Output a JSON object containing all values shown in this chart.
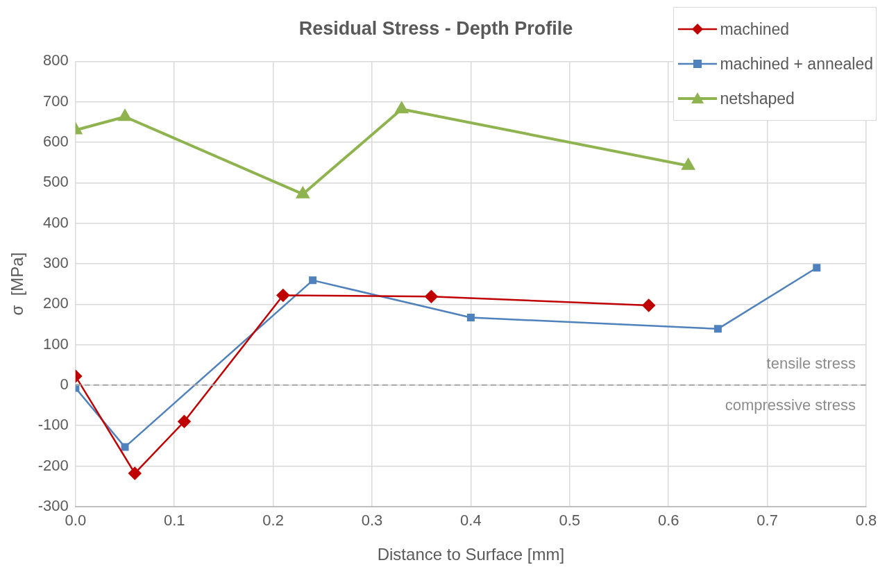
{
  "chart_data": {
    "type": "line",
    "title": "Residual Stress - Depth Profile",
    "xlabel": "Distance to Surface [mm]",
    "ylabel": "σ  [MPa]",
    "xlim": [
      0,
      0.8
    ],
    "xticks": [
      {
        "value": 0,
        "label": "0.0"
      },
      0.1,
      0.2,
      0.3,
      0.4,
      0.5,
      0.6,
      0.7,
      0.8
    ],
    "ylim": [
      -300,
      800
    ],
    "yticks": [
      -300,
      -200,
      -100,
      0,
      100,
      200,
      300,
      400,
      500,
      600,
      700,
      800
    ],
    "grid": true,
    "legend": "top right",
    "line_style": "solid",
    "ref_lines": [
      {
        "axis": "y",
        "value": 0,
        "color": "#a6a6a6",
        "line_style": "dashed"
      }
    ],
    "annotations": [
      "tensile stress",
      "compressive stress"
    ],
    "series": [
      {
        "name": "machined",
        "color": "#c00000",
        "marker": "diamond",
        "x": [
          0,
          0.06,
          0.11,
          0.21,
          0.36,
          0.58
        ],
        "values": [
          22,
          -218,
          -90,
          222,
          219,
          197
        ]
      },
      {
        "name": "machined + annealed",
        "color": "#4f81bd",
        "marker": "square",
        "x": [
          0,
          0.05,
          0.24,
          0.4,
          0.65,
          0.75
        ],
        "values": [
          -7,
          -153,
          259,
          167,
          139,
          290
        ]
      },
      {
        "name": "netshaped",
        "color": "#8fb34f",
        "marker": "triangle",
        "x": [
          0,
          0.05,
          0.23,
          0.33,
          0.62
        ],
        "values": [
          630,
          663,
          472,
          682,
          542
        ]
      }
    ]
  }
}
